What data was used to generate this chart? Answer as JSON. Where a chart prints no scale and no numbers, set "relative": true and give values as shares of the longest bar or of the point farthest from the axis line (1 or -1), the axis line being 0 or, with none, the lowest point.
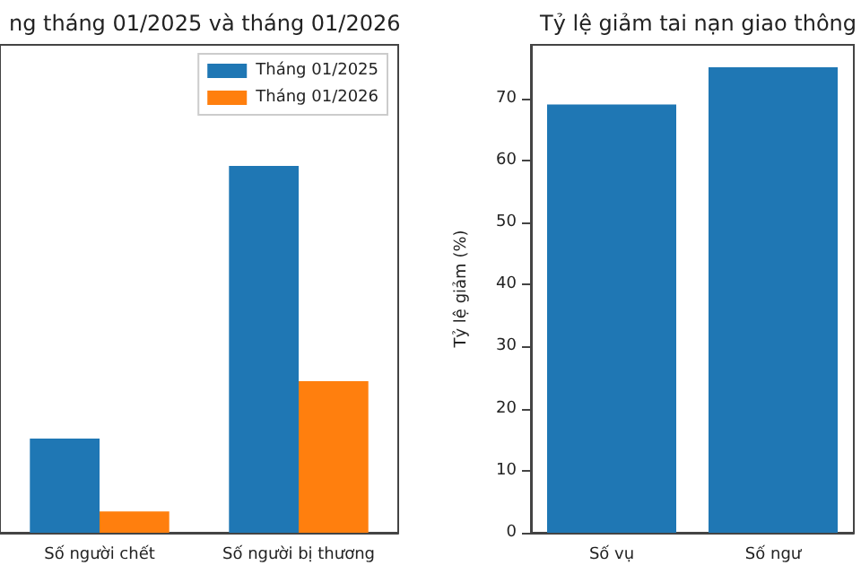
{
  "chart_data": [
    {
      "type": "bar",
      "title": "ng tháng 01/2025 và tháng 01/2026",
      "categories": [
        "Số người chết",
        "Số người bị thương"
      ],
      "relative": true,
      "legend": "top right",
      "series": [
        {
          "name": "Tháng 01/2025",
          "color": "#1f77b4",
          "values": [
            0.257,
            1
          ]
        },
        {
          "name": "Tháng 01/2026",
          "color": "#ff7f0e",
          "values": [
            0.058,
            0.413
          ]
        }
      ]
    },
    {
      "type": "bar",
      "title": "Tỷ lệ giảm tai nạn giao thông",
      "categories": [
        "Số vụ",
        "Số ngư"
      ],
      "ylabel": "Tỷ lệ giảm (%)",
      "ylim": [
        0,
        78.6
      ],
      "yticks": [
        0,
        10,
        20,
        30,
        40,
        50,
        60,
        70
      ],
      "series": [
        {
          "color": "#1f77b4",
          "values": [
            69,
            75
          ]
        }
      ]
    }
  ]
}
